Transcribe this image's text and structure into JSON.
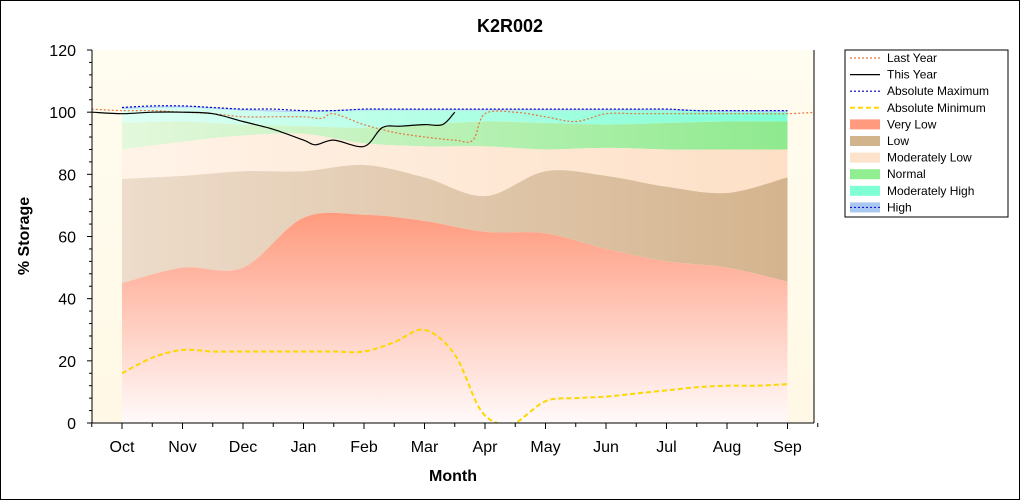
{
  "chart_data": {
    "type": "area",
    "title": "K2R002",
    "xlabel": "Month",
    "ylabel": "% Storage",
    "ylim": [
      0,
      120
    ],
    "yticks": [
      "0",
      "20",
      "40",
      "60",
      "80",
      "100",
      "120"
    ],
    "categories": [
      "Oct",
      "Nov",
      "Dec",
      "Jan",
      "Feb",
      "Mar",
      "Apr",
      "May",
      "Jun",
      "Jul",
      "Aug",
      "Sep"
    ],
    "grid": false,
    "legend_position": "right",
    "bands": [
      {
        "name": "Very Low",
        "color": "#ff9a7e",
        "x": [
          0,
          1,
          2,
          3,
          4,
          5,
          6,
          7,
          8,
          9,
          10,
          11
        ],
        "upper": [
          45,
          50,
          50,
          66,
          67,
          65,
          61.5,
          61,
          56,
          52,
          50,
          45.5
        ]
      },
      {
        "name": "Low",
        "color": "#d2b48c",
        "x": [
          0,
          1,
          2,
          3,
          4,
          5,
          6,
          7,
          8,
          9,
          10,
          11
        ],
        "upper": [
          78.5,
          79.5,
          81,
          81,
          83,
          79,
          73,
          81,
          79.5,
          76,
          74,
          79
        ]
      },
      {
        "name": "Moderately Low",
        "color": "#fde3cc",
        "x": [
          0,
          1,
          2,
          3,
          4,
          5,
          6,
          7,
          8,
          9,
          10,
          11
        ],
        "upper": [
          88,
          90.5,
          92.5,
          93,
          90,
          89,
          89,
          88,
          88.5,
          88,
          88,
          88
        ]
      },
      {
        "name": "Normal",
        "color": "#90ee90",
        "x": [
          0,
          1,
          2,
          3,
          4,
          5,
          6,
          7,
          8,
          9,
          10,
          11
        ],
        "upper": [
          96.5,
          97,
          96,
          95.5,
          95,
          96,
          97,
          96.5,
          96,
          96.5,
          97,
          97
        ]
      },
      {
        "name": "Moderately High",
        "color": "#7fffd4",
        "x": [
          0,
          1,
          2,
          3,
          4,
          5,
          6,
          7,
          8,
          9,
          10,
          11
        ],
        "upper": [
          101,
          101.5,
          100.5,
          100,
          100.5,
          100.5,
          100.5,
          100.5,
          100.5,
          100.5,
          100,
          100
        ]
      },
      {
        "name": "High",
        "color": "#a8c8f0",
        "x": [
          0,
          1,
          2,
          3,
          4,
          5,
          6,
          7,
          8,
          9,
          10,
          11
        ],
        "upper": [
          101.5,
          102,
          101,
          100.5,
          101,
          101,
          101,
          101,
          101,
          101,
          100.5,
          100.5
        ]
      }
    ],
    "series": [
      {
        "name": "Last Year",
        "color": "#e07840",
        "dash": "2,2",
        "x": [
          -0.5,
          0,
          0.5,
          1,
          1.5,
          2,
          2.5,
          3,
          3.3,
          3.5,
          4,
          4.5,
          5,
          5.5,
          5.8,
          6,
          6.5,
          7,
          7.5,
          8,
          8.5,
          9,
          9.5,
          10,
          10.5,
          11,
          11.5
        ],
        "y": [
          101,
          100.5,
          100.5,
          100,
          99.5,
          98.5,
          98.5,
          98.5,
          98,
          99.5,
          96,
          93.5,
          92,
          91,
          91,
          99.5,
          100,
          98.5,
          97,
          99.5,
          99.5,
          99.5,
          99.5,
          99.5,
          99.5,
          99.5,
          100
        ]
      },
      {
        "name": "This Year",
        "color": "#000000",
        "dash": "",
        "x": [
          -0.5,
          0,
          0.5,
          1,
          1.5,
          2,
          2.5,
          3,
          3.2,
          3.5,
          4,
          4.3,
          4.6,
          5,
          5.3,
          5.5
        ],
        "y": [
          100,
          99.5,
          100,
          100,
          99.5,
          97,
          94.5,
          91,
          89.5,
          91,
          89,
          95,
          95.5,
          96,
          96,
          100
        ]
      },
      {
        "name": "Absolute Maximum",
        "color": "#0000cc",
        "dash": "2,2",
        "x": [
          0,
          0.5,
          1,
          1.5,
          2,
          2.5,
          3,
          3.5,
          4,
          4.5,
          5,
          5.5,
          6,
          6.5,
          7,
          7.5,
          8,
          8.5,
          9,
          9.5,
          10,
          10.5,
          11
        ],
        "y": [
          101.5,
          102,
          102,
          101.5,
          101,
          101,
          100.5,
          100.5,
          101,
          101,
          101,
          101,
          101,
          101,
          101,
          101,
          101,
          101,
          101,
          100.5,
          100.5,
          100.5,
          100.5
        ]
      },
      {
        "name": "Absolute Minimum",
        "color": "#ffd700",
        "dash": "5,3",
        "x": [
          0,
          0.5,
          1,
          1.5,
          2,
          2.5,
          3,
          3.5,
          4,
          4.5,
          5,
          5.5,
          5.9,
          6.2,
          6.5,
          7,
          7.5,
          8,
          8.5,
          9,
          9.5,
          10,
          10.5,
          11
        ],
        "y": [
          16,
          21,
          23.5,
          23,
          23,
          23,
          23,
          23,
          23,
          26,
          30,
          22,
          5,
          0,
          0,
          7,
          8,
          8.5,
          9.5,
          10.5,
          11.5,
          12,
          12,
          12.5
        ]
      }
    ],
    "legend": [
      {
        "label": "Last Year",
        "kind": "line",
        "color": "#e07840",
        "dash": "2,2"
      },
      {
        "label": "This Year",
        "kind": "line",
        "color": "#000000",
        "dash": ""
      },
      {
        "label": "Absolute Maximum",
        "kind": "line",
        "color": "#0000cc",
        "dash": "2,2"
      },
      {
        "label": "Absolute Minimum",
        "kind": "line",
        "color": "#ffd700",
        "dash": "5,3"
      },
      {
        "label": "Very Low",
        "kind": "fill",
        "color": "#ff9a7e"
      },
      {
        "label": "Low",
        "kind": "fill",
        "color": "#d2b48c"
      },
      {
        "label": "Moderately Low",
        "kind": "fill",
        "color": "#fde3cc"
      },
      {
        "label": "Normal",
        "kind": "fill",
        "color": "#90ee90"
      },
      {
        "label": "Moderately High",
        "kind": "fill",
        "color": "#7fffd4"
      },
      {
        "label": "High",
        "kind": "fill",
        "color": "#a8c8f0"
      }
    ]
  }
}
